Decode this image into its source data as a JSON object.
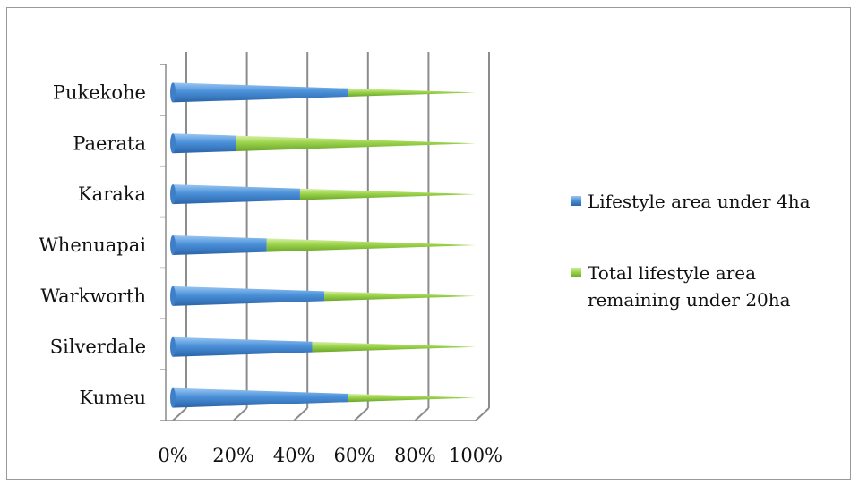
{
  "chart_data": {
    "type": "bar",
    "stacked": "percent",
    "shape": "cone",
    "orientation": "horizontal",
    "categories": [
      "Pukekohe",
      "Paerata",
      "Karaka",
      "Whenuapai",
      "Warkworth",
      "Silverdale",
      "Kumeu"
    ],
    "series": [
      {
        "name": "Lifestyle area under 4ha",
        "color": "#4a90d9",
        "values": [
          58,
          21,
          42,
          31,
          50,
          46,
          58
        ]
      },
      {
        "name": "Total lifestyle area remaining under 20ha",
        "color": "#9bd34a",
        "values": [
          42,
          79,
          58,
          69,
          50,
          54,
          42
        ]
      }
    ],
    "xticks": [
      "0%",
      "20%",
      "40%",
      "60%",
      "80%",
      "100%"
    ],
    "xlim": [
      0,
      100
    ],
    "grid": true,
    "legend_position": "right"
  },
  "legend": {
    "item1_line1": "Lifestyle area under 4ha",
    "item2_line1": "Total lifestyle area",
    "item2_line2": "remaining under 20ha"
  }
}
